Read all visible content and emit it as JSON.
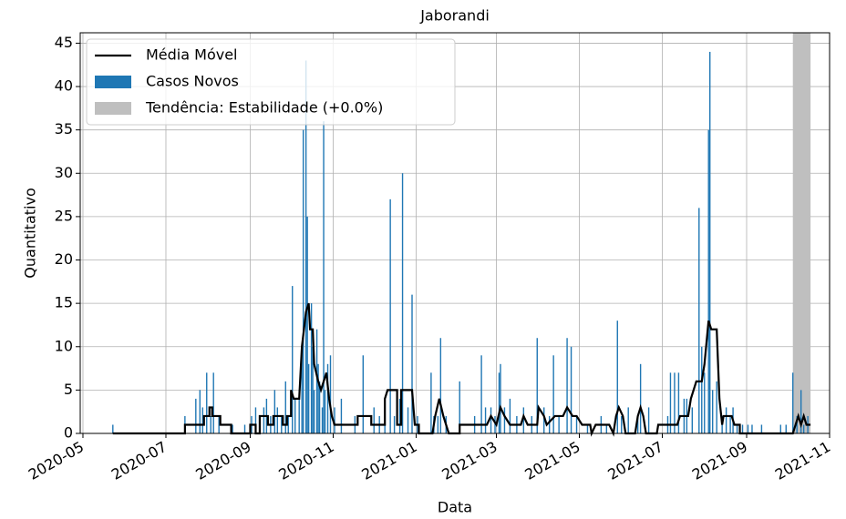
{
  "chart_data": {
    "type": "bar_line",
    "title": "Jaborandi",
    "x_label": "Data",
    "y_label": "Quantitativo",
    "xlim": [
      18381,
      18932
    ],
    "xticks": [
      {
        "value": 18383,
        "label": "2020-05"
      },
      {
        "value": 18444,
        "label": "2020-07"
      },
      {
        "value": 18506,
        "label": "2020-09"
      },
      {
        "value": 18567,
        "label": "2020-11"
      },
      {
        "value": 18628,
        "label": "2021-01"
      },
      {
        "value": 18687,
        "label": "2021-03"
      },
      {
        "value": 18748,
        "label": "2021-05"
      },
      {
        "value": 18809,
        "label": "2021-07"
      },
      {
        "value": 18871,
        "label": "2021-09"
      },
      {
        "value": 18932,
        "label": "2021-11"
      }
    ],
    "ylim": [
      0,
      46.2
    ],
    "yticks": [
      0,
      5,
      10,
      15,
      20,
      25,
      30,
      35,
      40,
      45
    ],
    "grid": true,
    "legend": "upper left",
    "line": {
      "name": "Média Móvel",
      "color": "#000000",
      "x": [
        18405,
        18458,
        18458,
        18472,
        18472,
        18476,
        18476,
        18478,
        18478,
        18484,
        18484,
        18492,
        18492,
        18506,
        18506,
        18510,
        18510,
        18513,
        18513,
        18519,
        18519,
        18523,
        18523,
        18530,
        18530,
        18533,
        18533,
        18536,
        18536,
        18538,
        18542,
        18544,
        18547,
        18549,
        18550,
        18552,
        18553,
        18556,
        18558,
        18560,
        18562,
        18564,
        18566,
        18568,
        18585,
        18585,
        18595,
        18595,
        18605,
        18605,
        18607,
        18614,
        18614,
        18617,
        18617,
        18625,
        18627,
        18630,
        18630,
        18640,
        18642,
        18645,
        18648,
        18652,
        18660,
        18660,
        18680,
        18683,
        18687,
        18690,
        18693,
        18697,
        18705,
        18707,
        18710,
        18717,
        18718,
        18722,
        18724,
        18730,
        18736,
        18739,
        18743,
        18746,
        18750,
        18756,
        18757,
        18760,
        18770,
        18773,
        18775,
        18777,
        18780,
        18782,
        18789,
        18791,
        18793,
        18795,
        18797,
        18805,
        18806,
        18820,
        18822,
        18828,
        18830,
        18834,
        18838,
        18840,
        18843,
        18845,
        18849,
        18851,
        18853,
        18854,
        18860,
        18862,
        18866,
        18866,
        18905,
        18907,
        18909,
        18911,
        18913,
        18915,
        18918
      ],
      "values": [
        0,
        0,
        1,
        1,
        2,
        2,
        3,
        3,
        2,
        2,
        1,
        1,
        0,
        0,
        1,
        1,
        0,
        0,
        2,
        2,
        1,
        1,
        2,
        2,
        1,
        1,
        2,
        2,
        5,
        4,
        4,
        10,
        14,
        15,
        12,
        12,
        8,
        6,
        5,
        6,
        7,
        4,
        2,
        1,
        1,
        2,
        2,
        1,
        1,
        4,
        5,
        5,
        1,
        1,
        5,
        5,
        1,
        1,
        0,
        0,
        2,
        4,
        2,
        0,
        0,
        1,
        1,
        2,
        1,
        3,
        2,
        1,
        1,
        2,
        1,
        1,
        3,
        2,
        1,
        2,
        2,
        3,
        2,
        2,
        1,
        1,
        0,
        1,
        1,
        0,
        2,
        3,
        2,
        0,
        0,
        2,
        3,
        2,
        0,
        0,
        1,
        1,
        2,
        2,
        4,
        6,
        6,
        8,
        13,
        12,
        12,
        4,
        1,
        2,
        2,
        1,
        1,
        0,
        0,
        1,
        2,
        1,
        2,
        1,
        1
      ]
    },
    "bars": {
      "name": "Casos Novos",
      "color": "#1f77b4",
      "x": [
        18405,
        18458,
        18466,
        18469,
        18471,
        18474,
        18477,
        18479,
        18483,
        18493,
        18502,
        18507,
        18510,
        18513,
        18516,
        18518,
        18521,
        18524,
        18526,
        18529,
        18532,
        18534,
        18537,
        18539,
        18542,
        18544,
        18545,
        18547,
        18548,
        18549,
        18551,
        18552,
        18553,
        18555,
        18556,
        18557,
        18559,
        18560,
        18561,
        18563,
        18565,
        18568,
        18573,
        18583,
        18589,
        18597,
        18601,
        18605,
        18609,
        18612,
        18616,
        18618,
        18622,
        18625,
        18629,
        18639,
        18641,
        18644,
        18646,
        18650,
        18660,
        18671,
        18676,
        18679,
        18683,
        18686,
        18689,
        18690,
        18693,
        18697,
        18702,
        18707,
        18713,
        18717,
        18722,
        18726,
        18729,
        18733,
        18739,
        18742,
        18746,
        18754,
        18764,
        18768,
        18776,
        18779,
        18784,
        18791,
        18793,
        18799,
        18813,
        18815,
        18818,
        18821,
        18825,
        18827,
        18831,
        18836,
        18838,
        18840,
        18843,
        18844,
        18846,
        18849,
        18853,
        18856,
        18859,
        18861,
        18864,
        18868,
        18872,
        18875,
        18882,
        18896,
        18900,
        18905,
        18908,
        18911,
        18913,
        18916
      ],
      "values": [
        1,
        2,
        4,
        5,
        3,
        7,
        2,
        7,
        2,
        1,
        1,
        2,
        3,
        2,
        3,
        4,
        2,
        5,
        3,
        2,
        6,
        2,
        17,
        4,
        5,
        10,
        35,
        43,
        25,
        8,
        15,
        10,
        5,
        12,
        8,
        6,
        3,
        36,
        5,
        8,
        9,
        3,
        4,
        2,
        9,
        3,
        2,
        3,
        27,
        2,
        4,
        30,
        3,
        16,
        2,
        7,
        2,
        2,
        11,
        2,
        6,
        2,
        9,
        3,
        3,
        2,
        7,
        8,
        3,
        4,
        2,
        3,
        2,
        11,
        3,
        2,
        9,
        2,
        11,
        10,
        2,
        1,
        2,
        1,
        13,
        2,
        3,
        2,
        8,
        3,
        2,
        7,
        7,
        7,
        4,
        4,
        3,
        26,
        10,
        7,
        35,
        44,
        5,
        6,
        2,
        3,
        2,
        3,
        1,
        1,
        1,
        1,
        1,
        1,
        1,
        7,
        2,
        5,
        1,
        2
      ]
    },
    "span": {
      "name": "Tendência: Estabilidade (+0.0%)",
      "color": "#bfbfbf",
      "x": [
        18905,
        18918
      ]
    }
  }
}
